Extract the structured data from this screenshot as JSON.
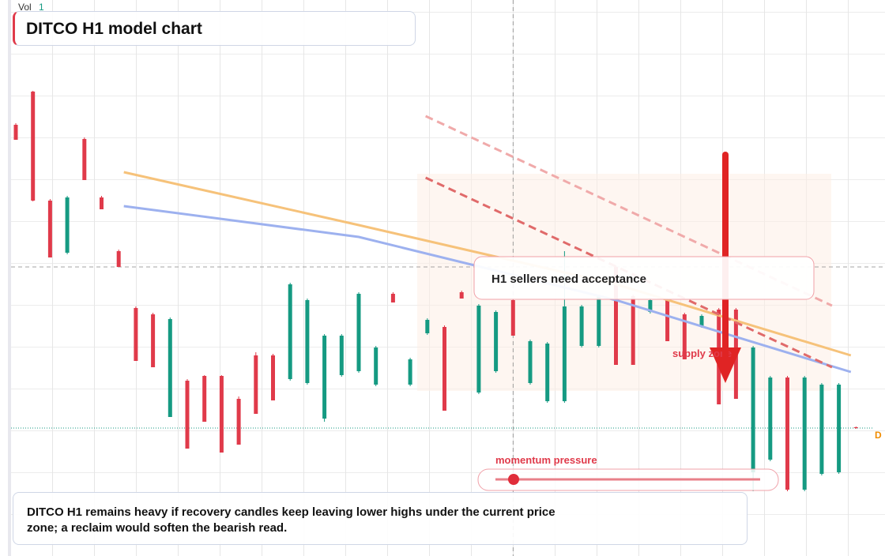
{
  "header": {
    "vol_label": "Vol",
    "vol_value": "1",
    "title": "DITCO H1 model chart"
  },
  "chart_data": {
    "type": "candlestick",
    "ylim": [
      0,
      70.4
    ],
    "up_color": "#159a82",
    "down_color": "#e03a4a",
    "candles": [
      {
        "o": 54.6,
        "h": 54.8,
        "l": 52.7,
        "c": 52.7
      },
      {
        "o": 58.8,
        "h": 58.9,
        "l": 44.9,
        "c": 45.0
      },
      {
        "o": 45.0,
        "h": 45.2,
        "l": 37.8,
        "c": 37.8
      },
      {
        "o": 38.4,
        "h": 45.6,
        "l": 38.2,
        "c": 45.4
      },
      {
        "o": 52.8,
        "h": 53.0,
        "l": 47.6,
        "c": 47.6
      },
      {
        "o": 45.4,
        "h": 45.6,
        "l": 43.9,
        "c": 43.9
      },
      {
        "o": 38.6,
        "h": 38.8,
        "l": 36.6,
        "c": 36.6
      },
      {
        "o": 31.4,
        "h": 31.6,
        "l": 24.7,
        "c": 24.7
      },
      {
        "o": 30.6,
        "h": 30.8,
        "l": 23.9,
        "c": 23.9
      },
      {
        "o": 17.6,
        "h": 30.2,
        "l": 17.6,
        "c": 30.0
      },
      {
        "o": 22.2,
        "h": 22.4,
        "l": 13.6,
        "c": 13.6
      },
      {
        "o": 22.8,
        "h": 22.9,
        "l": 17.0,
        "c": 17.0
      },
      {
        "o": 22.8,
        "h": 22.9,
        "l": 13.1,
        "c": 13.1
      },
      {
        "o": 19.9,
        "h": 20.2,
        "l": 14.1,
        "c": 14.1
      },
      {
        "o": 25.4,
        "h": 25.8,
        "l": 18.0,
        "c": 18.0
      },
      {
        "o": 25.4,
        "h": 25.6,
        "l": 19.7,
        "c": 19.7
      },
      {
        "o": 22.4,
        "h": 34.6,
        "l": 22.2,
        "c": 34.4
      },
      {
        "o": 21.9,
        "h": 32.6,
        "l": 21.7,
        "c": 32.4
      },
      {
        "o": 17.4,
        "h": 28.1,
        "l": 17.0,
        "c": 27.9
      },
      {
        "o": 22.9,
        "h": 28.1,
        "l": 22.7,
        "c": 27.9
      },
      {
        "o": 23.4,
        "h": 33.4,
        "l": 23.2,
        "c": 33.2
      },
      {
        "o": 21.7,
        "h": 26.6,
        "l": 21.5,
        "c": 26.4
      },
      {
        "o": 33.2,
        "h": 33.4,
        "l": 32.1,
        "c": 32.1
      },
      {
        "o": 21.7,
        "h": 25.1,
        "l": 21.5,
        "c": 24.9
      },
      {
        "o": 28.2,
        "h": 30.1,
        "l": 28.0,
        "c": 29.9
      },
      {
        "o": 29.0,
        "h": 29.2,
        "l": 18.4,
        "c": 18.4
      },
      {
        "o": 33.4,
        "h": 33.6,
        "l": 32.6,
        "c": 32.6
      },
      {
        "o": 20.7,
        "h": 31.9,
        "l": 20.5,
        "c": 31.7
      },
      {
        "o": 23.4,
        "h": 31.1,
        "l": 23.2,
        "c": 30.9
      },
      {
        "o": 32.4,
        "h": 32.6,
        "l": 27.9,
        "c": 27.9
      },
      {
        "o": 21.9,
        "h": 27.4,
        "l": 21.7,
        "c": 27.2
      },
      {
        "o": 19.6,
        "h": 27.1,
        "l": 19.4,
        "c": 26.9
      },
      {
        "o": 19.6,
        "h": 38.6,
        "l": 19.4,
        "c": 31.6
      },
      {
        "o": 26.6,
        "h": 31.8,
        "l": 26.4,
        "c": 31.6
      },
      {
        "o": 26.6,
        "h": 33.1,
        "l": 26.4,
        "c": 32.9
      },
      {
        "o": 36.6,
        "h": 36.8,
        "l": 24.2,
        "c": 24.2
      },
      {
        "o": 32.9,
        "h": 33.1,
        "l": 24.2,
        "c": 24.2
      },
      {
        "o": 30.9,
        "h": 32.6,
        "l": 30.7,
        "c": 32.4
      },
      {
        "o": 32.4,
        "h": 32.6,
        "l": 27.2,
        "c": 27.2
      },
      {
        "o": 30.6,
        "h": 30.8,
        "l": 24.9,
        "c": 24.9
      },
      {
        "o": 29.1,
        "h": 30.6,
        "l": 28.9,
        "c": 30.4
      },
      {
        "o": 31.2,
        "h": 31.4,
        "l": 19.2,
        "c": 19.2
      },
      {
        "o": 31.2,
        "h": 31.4,
        "l": 19.9,
        "c": 19.9
      },
      {
        "o": 10.6,
        "h": 26.6,
        "l": 8.2,
        "c": 26.4
      },
      {
        "o": 12.2,
        "h": 22.8,
        "l": 12.0,
        "c": 22.6
      },
      {
        "o": 22.6,
        "h": 22.8,
        "l": 8.2,
        "c": 8.4
      },
      {
        "o": 8.4,
        "h": 22.8,
        "l": 8.2,
        "c": 22.6
      },
      {
        "o": 10.4,
        "h": 21.9,
        "l": 10.2,
        "c": 21.7
      },
      {
        "o": 10.6,
        "h": 21.9,
        "l": 10.4,
        "c": 21.7
      },
      {
        "o": 16.3,
        "h": 16.4,
        "l": 16.1,
        "c": 16.2
      }
    ],
    "overlays": [
      {
        "color": "#f6c27a",
        "x": [
          6.3,
          20,
          35,
          48.7
        ],
        "values": [
          48.6,
          41.9,
          34.4,
          25.4
        ]
      },
      {
        "color": "#9db1ef",
        "x": [
          6.3,
          20,
          35,
          48.7
        ],
        "values": [
          44.3,
          40.4,
          32.4,
          23.3
        ]
      }
    ],
    "trendlines": [
      {
        "color": "#e06a6a",
        "x": [
          23.9,
          47.6
        ],
        "values": [
          47.9,
          23.9
        ]
      },
      {
        "color": "#f0aaaa",
        "x": [
          23.9,
          47.6
        ],
        "values": [
          55.7,
          31.7
        ]
      }
    ],
    "crosshair": {
      "x": 29,
      "y": 36.6
    },
    "last_price": 16.2,
    "last_label": "D",
    "annotations": {
      "callout": "H1 sellers need acceptance",
      "zone": "supply zone",
      "pressure": "momentum pressure"
    }
  },
  "note": "DITCO H1 remains heavy if recovery candles keep leaving lower highs under the current price zone; a reclaim would soften the bearish read."
}
